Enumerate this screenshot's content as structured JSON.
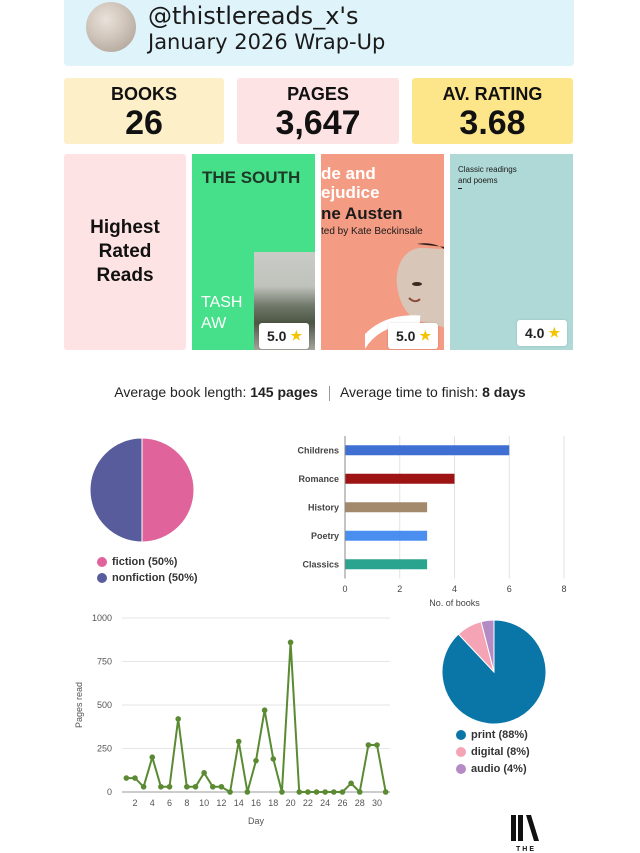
{
  "header": {
    "handle": "@thistlereads_x's",
    "subtitle": "January 2026 Wrap-Up"
  },
  "stats": {
    "books_label": "BOOKS",
    "books_value": "26",
    "pages_label": "PAGES",
    "pages_value": "3,647",
    "rating_label": "AV. RATING",
    "rating_value": "3.68"
  },
  "highest_rated": {
    "label": "Highest Rated Reads",
    "covers": [
      {
        "title": "THE SOUTH",
        "author_line1": "TASH",
        "author_line2": "AW",
        "rating": "5.0"
      },
      {
        "title_line1": "de and",
        "title_line2": "ejudice",
        "author": "ne Austen",
        "note": "ted by Kate Beckinsale",
        "rating": "5.0"
      },
      {
        "text_line1": "Classic readings",
        "text_line2": "and poems",
        "rating": "4.0"
      }
    ],
    "star_icon": "star-icon"
  },
  "averages": {
    "length_label": "Average book length:",
    "length_value": "145 pages",
    "time_label": "Average time to finish:",
    "time_value": "8 days"
  },
  "chart_data": [
    {
      "type": "pie",
      "id": "fiction_split",
      "slices": [
        {
          "label": "fiction (50%)",
          "value": 50,
          "color": "#e0649b"
        },
        {
          "label": "nonfiction (50%)",
          "value": 50,
          "color": "#595c9c"
        }
      ],
      "legend": "bottom"
    },
    {
      "type": "bar",
      "orientation": "horizontal",
      "id": "genres",
      "categories": [
        "Childrens",
        "Romance",
        "History",
        "Poetry",
        "Classics"
      ],
      "values": [
        6,
        4,
        3,
        3,
        3
      ],
      "colors": [
        "#3f6fd2",
        "#9e1414",
        "#a48a6c",
        "#4a8ff0",
        "#2aa48e"
      ],
      "xlabel": "No. of books",
      "xlim": [
        0,
        8
      ],
      "xticks": [
        0,
        2,
        4,
        6,
        8
      ],
      "grid": true
    },
    {
      "type": "line",
      "id": "pages_per_day",
      "ylabel": "Pages read",
      "xlabel": "Day",
      "ylim": [
        0,
        1000
      ],
      "yticks": [
        0,
        250,
        500,
        750,
        1000
      ],
      "xlim": [
        0.5,
        31.5
      ],
      "xticks": [
        2,
        4,
        6,
        8,
        10,
        12,
        14,
        16,
        18,
        20,
        22,
        24,
        26,
        28,
        30
      ],
      "x": [
        1,
        2,
        3,
        4,
        5,
        6,
        7,
        8,
        9,
        10,
        11,
        12,
        13,
        14,
        15,
        16,
        17,
        18,
        19,
        20,
        21,
        22,
        23,
        24,
        25,
        26,
        27,
        28,
        29,
        30,
        31
      ],
      "y": [
        80,
        80,
        30,
        200,
        30,
        30,
        420,
        30,
        30,
        110,
        30,
        30,
        0,
        290,
        0,
        180,
        470,
        190,
        0,
        860,
        0,
        0,
        0,
        0,
        0,
        0,
        50,
        0,
        270,
        270,
        0
      ],
      "color": "#5a8a32",
      "grid": true
    },
    {
      "type": "pie",
      "id": "formats",
      "slices": [
        {
          "label": "print (88%)",
          "value": 88,
          "color": "#0a76a8"
        },
        {
          "label": "digital (8%)",
          "value": 8,
          "color": "#f4a4b4"
        },
        {
          "label": "audio (4%)",
          "value": 4,
          "color": "#b58bc5"
        }
      ],
      "legend": "bottom"
    }
  ],
  "logo": {
    "text": "THE"
  }
}
